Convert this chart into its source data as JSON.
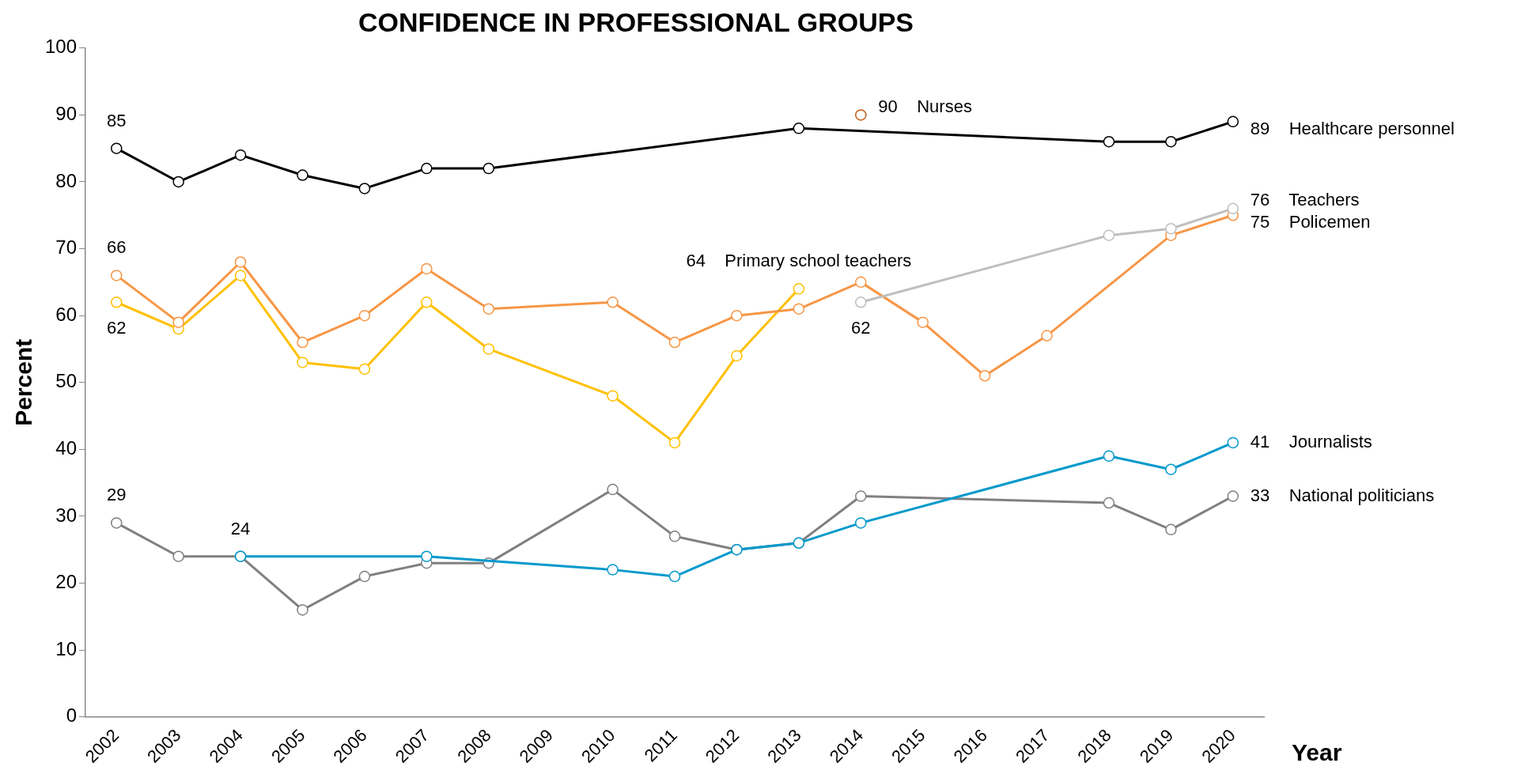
{
  "chart_data": {
    "type": "line",
    "title": "CONFIDENCE IN PROFESSIONAL GROUPS",
    "xlabel": "Year",
    "ylabel": "Percent",
    "categories": [
      "2002",
      "2003",
      "2004",
      "2005",
      "2006",
      "2007",
      "2008",
      "2009",
      "2010",
      "2011",
      "2012",
      "2013",
      "2014",
      "2015",
      "2016",
      "2017",
      "2018",
      "2019",
      "2020"
    ],
    "ylim": [
      0,
      100
    ],
    "yticks": [
      0,
      10,
      20,
      30,
      40,
      50,
      60,
      70,
      80,
      90,
      100
    ],
    "grid": false,
    "legend": false,
    "marker": "circle",
    "line_style": "solid",
    "series": [
      {
        "name": "Healthcare personnel",
        "color": "#000000",
        "values": [
          85,
          80,
          84,
          81,
          79,
          82,
          82,
          null,
          null,
          null,
          null,
          88,
          null,
          null,
          null,
          null,
          86,
          86,
          89
        ],
        "value_labels": [
          "85",
          null,
          null,
          null,
          null,
          null,
          null,
          null,
          null,
          null,
          null,
          null,
          null,
          null,
          null,
          null,
          null,
          null,
          "89"
        ]
      },
      {
        "name": "Nurses",
        "color": "#c55a11",
        "values": [
          null,
          null,
          null,
          null,
          null,
          null,
          null,
          null,
          null,
          null,
          null,
          null,
          90,
          null,
          null,
          null,
          null,
          null,
          null
        ],
        "value_labels": [
          null,
          null,
          null,
          null,
          null,
          null,
          null,
          null,
          null,
          null,
          null,
          null,
          "90",
          null,
          null,
          null,
          null,
          null,
          null
        ]
      },
      {
        "name": "Teachers",
        "color": "#bfbfbf",
        "values": [
          null,
          null,
          null,
          null,
          null,
          null,
          null,
          null,
          null,
          null,
          null,
          null,
          62,
          null,
          null,
          null,
          72,
          73,
          76
        ],
        "value_labels": [
          null,
          null,
          null,
          null,
          null,
          null,
          null,
          null,
          null,
          null,
          null,
          null,
          "62",
          null,
          null,
          null,
          null,
          null,
          "76"
        ]
      },
      {
        "name": "Policemen",
        "color": "#f79646",
        "values": [
          66,
          59,
          68,
          56,
          60,
          67,
          61,
          null,
          62,
          56,
          60,
          61,
          65,
          59,
          51,
          57,
          null,
          72,
          75
        ],
        "value_labels": [
          "66",
          null,
          null,
          null,
          null,
          null,
          null,
          null,
          null,
          null,
          null,
          null,
          null,
          null,
          null,
          null,
          null,
          null,
          "75"
        ]
      },
      {
        "name": "Primary school teachers",
        "color": "#ffc000",
        "values": [
          62,
          58,
          66,
          53,
          52,
          62,
          55,
          null,
          48,
          41,
          54,
          64,
          null,
          null,
          null,
          null,
          null,
          null,
          null
        ],
        "value_labels": [
          "62",
          null,
          null,
          null,
          null,
          null,
          null,
          null,
          null,
          null,
          null,
          "64",
          null,
          null,
          null,
          null,
          null,
          null,
          null
        ]
      },
      {
        "name": "Journalists",
        "color": "#0099cc",
        "values": [
          null,
          null,
          24,
          null,
          null,
          24,
          null,
          null,
          22,
          21,
          25,
          26,
          29,
          null,
          null,
          null,
          39,
          37,
          41
        ],
        "value_labels": [
          null,
          null,
          "24",
          null,
          null,
          null,
          null,
          null,
          null,
          null,
          null,
          null,
          null,
          null,
          null,
          null,
          null,
          null,
          "41"
        ]
      },
      {
        "name": "National politicians",
        "color": "#808080",
        "values": [
          29,
          24,
          24,
          16,
          21,
          23,
          23,
          null,
          34,
          27,
          25,
          26,
          33,
          null,
          null,
          null,
          32,
          28,
          33
        ],
        "value_labels": [
          "29",
          null,
          null,
          null,
          null,
          null,
          null,
          null,
          null,
          null,
          null,
          null,
          null,
          null,
          null,
          null,
          null,
          null,
          "33"
        ]
      }
    ]
  }
}
